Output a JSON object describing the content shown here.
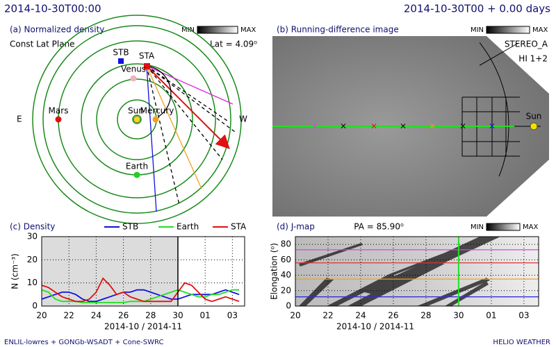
{
  "header": {
    "left": "2014-10-30T00:00",
    "right": "2014-10-30T00 + 0.00 days"
  },
  "footer": {
    "left": "ENLIL-lowres + GONGb-WSADT + Cone-SWRC",
    "right": "HELIO WEATHER"
  },
  "panel_a": {
    "title": "(a) Normalized density",
    "plane": "Const Lat Plane",
    "lat": "Lat = 4.09⁰",
    "colorbar": {
      "min": "MIN",
      "max": "MAX"
    },
    "labels": {
      "stb": "STB",
      "sta": "STA",
      "venus": "Venus",
      "sun": "Sun",
      "mercury": "Mercury",
      "mars": "Mars",
      "earth": "Earth",
      "east": "E",
      "west": "W"
    }
  },
  "panel_b": {
    "title": "(b) Running-difference image",
    "colorbar": {
      "min": "MIN",
      "max": "MAX"
    },
    "spacecraft": "STEREO_A",
    "instrument": "HI 1+2",
    "sun": "Sun"
  },
  "chart_data": [
    {
      "type": "line",
      "title": "(c) Density",
      "ylabel": "N (cm⁻³)",
      "xlabel": "2014-10 / 2014-11",
      "grid": true,
      "now": 30,
      "x": [
        20,
        20.5,
        21,
        21.5,
        22,
        22.5,
        23,
        23.5,
        24,
        24.5,
        25,
        25.5,
        26,
        26.5,
        27,
        27.5,
        28,
        28.5,
        29,
        29.5,
        30,
        30.5,
        31,
        31.5,
        32,
        32.5,
        33,
        33.5,
        34,
        34.5
      ],
      "xlim": [
        20,
        34.9
      ],
      "xticks": [
        20,
        22,
        24,
        26,
        28,
        30,
        {
          "value": 32,
          "label": "01"
        },
        {
          "value": 34,
          "label": "03"
        }
      ],
      "ylim": [
        0,
        30
      ],
      "yticks": [
        0,
        10,
        20,
        30
      ],
      "series": [
        {
          "name": "STB",
          "color": "#1010e0",
          "values": [
            3,
            4,
            5,
            6,
            6,
            5,
            3,
            2,
            2,
            3,
            4,
            5,
            6,
            6,
            7,
            7,
            6,
            5,
            4,
            3,
            3,
            4,
            5,
            5,
            5,
            5,
            6,
            7,
            6,
            5
          ]
        },
        {
          "name": "Earth",
          "color": "#20e020",
          "values": [
            7,
            6,
            3,
            2,
            2,
            2,
            1.5,
            1.5,
            1.5,
            1.5,
            1.5,
            1.5,
            1.5,
            2,
            2,
            2,
            3,
            4,
            5,
            6,
            7,
            6,
            5,
            4,
            4,
            5,
            5,
            6,
            7,
            7
          ]
        },
        {
          "name": "STA",
          "color": "#e01010",
          "values": [
            9,
            8,
            6,
            4,
            3,
            2,
            2,
            3,
            6,
            12,
            9,
            5,
            6,
            4,
            3,
            2,
            2,
            2,
            2,
            2,
            6,
            10,
            9,
            6,
            3,
            2,
            3,
            4,
            3,
            2
          ]
        }
      ]
    },
    {
      "type": "jmap",
      "title": "(d) J-map",
      "annotation": "PA = 85.90⁰",
      "colorbar": {
        "min": "MIN",
        "max": "MAX"
      },
      "ylabel": "Elongation (⁰)",
      "xlabel": "2014-10 / 2014-11",
      "grid": true,
      "now": 30,
      "xlim": [
        20,
        34.9
      ],
      "xticks": [
        20,
        22,
        24,
        26,
        28,
        30,
        {
          "value": 32,
          "label": "01"
        },
        {
          "value": 34,
          "label": "03"
        }
      ],
      "ylim": [
        0,
        90
      ],
      "yticks": [
        0,
        20,
        40,
        60,
        80
      ],
      "hlines": [
        {
          "color": "#e040e0",
          "value": 73
        },
        {
          "color": "#e03030",
          "value": 56
        },
        {
          "color": "#f0a020",
          "value": 35
        },
        {
          "color": "#3030e0",
          "value": 12
        }
      ]
    }
  ]
}
